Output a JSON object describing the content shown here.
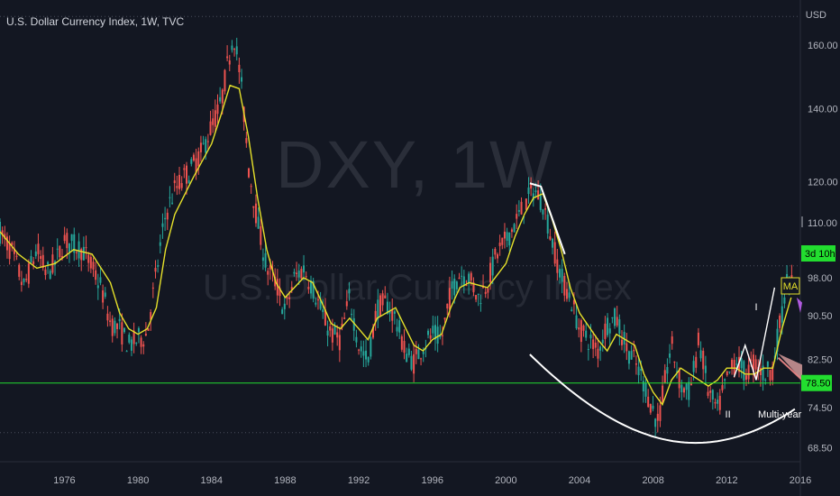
{
  "chart": {
    "title": "U.S. Dollar Currency Index, 1W, TVC",
    "currency": "USD",
    "watermark_symbol": "DXY, 1W",
    "watermark_name": "U.S. Dollar Currency Index",
    "colors": {
      "background": "#131722",
      "up_candle": "#26a69a",
      "down_candle": "#ef5350",
      "moving_average": "#e6e12a",
      "support_line": "#22dd2f",
      "drawing": "#ffffff",
      "countdown_tag": "#22dd2f"
    }
  },
  "chart_data": {
    "type": "line",
    "title": "U.S. Dollar Currency Index, 1W, TVC",
    "ylabel": "USD",
    "y_axis_scale": "log",
    "y_ticks": [
      160.0,
      140.0,
      120.0,
      110.0,
      98.0,
      90.5,
      82.5,
      78.5,
      74.5,
      68.5
    ],
    "y_tick_labels": [
      "160.00",
      "140.00",
      "120.00",
      "110.00",
      "98.00",
      "90.50",
      "82.50",
      "78.50",
      "74.50",
      "68.50"
    ],
    "x_ticks": [
      "1976",
      "1980",
      "1984",
      "1988",
      "1992",
      "1996",
      "2000",
      "2004",
      "2008",
      "2012",
      "2016"
    ],
    "xlim": [
      1972.5,
      2016.0
    ],
    "ylim": [
      66.5,
      176.0
    ],
    "grid": false,
    "series": [
      {
        "kind": "price",
        "x": [
          1972.5,
          1973.2,
          1973.8,
          1974.5,
          1975.0,
          1975.5,
          1976.0,
          1976.5,
          1977.0,
          1977.5,
          1978.0,
          1978.5,
          1979.0,
          1979.5,
          1980.0,
          1980.5,
          1981.0,
          1981.5,
          1982.0,
          1982.5,
          1983.0,
          1983.5,
          1984.0,
          1984.5,
          1985.0,
          1985.2,
          1985.6,
          1986.0,
          1986.5,
          1987.0,
          1987.5,
          1988.0,
          1988.5,
          1989.0,
          1989.5,
          1990.0,
          1990.5,
          1991.0,
          1991.5,
          1992.0,
          1992.5,
          1993.0,
          1993.5,
          1994.0,
          1994.5,
          1995.0,
          1995.5,
          1996.0,
          1996.5,
          1997.0,
          1997.5,
          1998.0,
          1998.5,
          1999.0,
          1999.5,
          2000.0,
          2000.5,
          2001.0,
          2001.5,
          2002.0,
          2002.5,
          2003.0,
          2003.5,
          2004.0,
          2004.5,
          2005.0,
          2005.5,
          2006.0,
          2006.5,
          2007.0,
          2007.5,
          2008.0,
          2008.3,
          2008.7,
          2009.0,
          2009.5,
          2010.0,
          2010.5,
          2011.0,
          2011.5,
          2012.0,
          2012.5,
          2013.0,
          2013.5,
          2014.0,
          2014.5,
          2015.0,
          2015.3,
          2015.6
        ],
        "y": [
          108.0,
          103.0,
          96.0,
          104.0,
          99.0,
          101.0,
          106.0,
          105.0,
          104.0,
          100.0,
          96.0,
          89.0,
          88.0,
          85.0,
          86.0,
          87.0,
          99.0,
          112.0,
          118.0,
          121.0,
          124.0,
          128.0,
          135.0,
          141.0,
          158.0,
          164.0,
          148.0,
          124.0,
          110.0,
          100.0,
          97.0,
          91.0,
          98.0,
          100.0,
          96.0,
          91.0,
          87.0,
          86.0,
          94.0,
          85.0,
          82.0,
          92.0,
          93.0,
          90.0,
          84.0,
          82.0,
          85.0,
          87.0,
          86.0,
          95.0,
          99.0,
          98.0,
          94.0,
          97.0,
          103.0,
          106.0,
          110.0,
          114.0,
          118.0,
          115.0,
          106.0,
          98.0,
          94.0,
          88.0,
          86.0,
          84.0,
          89.0,
          90.0,
          85.0,
          82.0,
          78.5,
          74.0,
          72.0,
          80.0,
          85.0,
          78.0,
          77.0,
          86.0,
          77.0,
          74.0,
          79.0,
          82.5,
          80.0,
          82.0,
          80.0,
          81.0,
          91.0,
          98.0,
          96.0
        ]
      },
      {
        "kind": "moving_average",
        "name": "MA",
        "x": [
          1972.5,
          1973.5,
          1974.5,
          1975.5,
          1976.5,
          1977.5,
          1978.5,
          1979.0,
          1979.5,
          1980.0,
          1980.5,
          1981.0,
          1981.5,
          1982.0,
          1983.0,
          1984.0,
          1984.5,
          1985.0,
          1985.5,
          1986.0,
          1986.5,
          1987.0,
          1987.5,
          1988.0,
          1988.5,
          1989.0,
          1989.5,
          1990.0,
          1990.5,
          1991.0,
          1991.5,
          1992.0,
          1992.5,
          1993.0,
          1994.0,
          1995.0,
          1995.5,
          1996.0,
          1996.5,
          1997.0,
          1997.5,
          1998.0,
          1999.0,
          2000.0,
          2000.5,
          2001.0,
          2001.5,
          2002.0,
          2002.5,
          2003.0,
          2003.5,
          2004.0,
          2005.0,
          2005.5,
          2006.0,
          2007.0,
          2007.5,
          2008.0,
          2008.5,
          2009.0,
          2009.5,
          2010.0,
          2010.5,
          2011.0,
          2011.5,
          2012.0,
          2012.5,
          2013.0,
          2013.5,
          2014.0,
          2014.5,
          2015.0,
          2015.5
        ],
        "y": [
          108.0,
          103.0,
          100.0,
          101.0,
          104.0,
          103.0,
          97.0,
          91.0,
          88.0,
          87.0,
          88.0,
          92.0,
          104.0,
          112.0,
          121.0,
          130.0,
          138.0,
          147.0,
          146.0,
          132.0,
          116.0,
          104.0,
          97.0,
          94.0,
          96.0,
          98.0,
          97.0,
          93.0,
          89.0,
          88.0,
          90.0,
          88.0,
          86.0,
          90.0,
          92.0,
          85.0,
          84.0,
          86.0,
          87.0,
          92.0,
          96.0,
          97.0,
          96.0,
          101.0,
          107.0,
          112.0,
          116.0,
          117.0,
          111.0,
          104.0,
          96.0,
          91.0,
          86.0,
          84.0,
          87.0,
          85.0,
          80.0,
          77.0,
          75.0,
          79.0,
          81.0,
          80.0,
          79.0,
          78.0,
          79.0,
          81.0,
          81.0,
          80.0,
          80.0,
          81.0,
          81.0,
          88.0,
          94.0
        ]
      }
    ],
    "annotations": [
      {
        "type": "horizontal_line",
        "y": 78.5,
        "label": "78.50"
      },
      {
        "type": "countdown_tag",
        "text": "3d 10h"
      },
      {
        "type": "label_tag",
        "text": "MA"
      },
      {
        "type": "arc",
        "label": "Multi-year"
      },
      {
        "type": "trend_line"
      },
      {
        "type": "text_marker",
        "text": "I"
      },
      {
        "type": "text_marker",
        "text": "II"
      }
    ]
  }
}
